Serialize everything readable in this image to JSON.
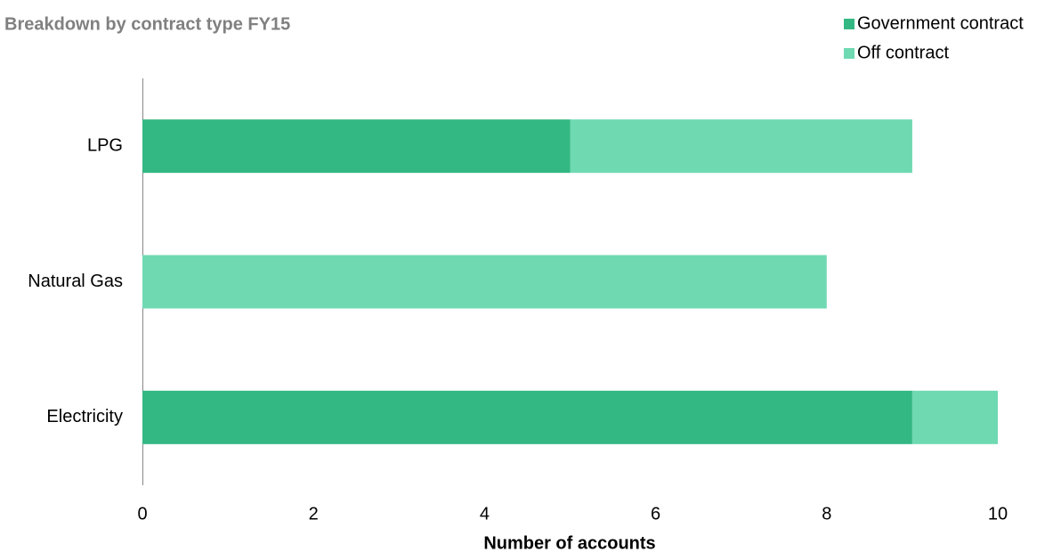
{
  "chart_data": {
    "type": "bar",
    "orientation": "horizontal",
    "stacked": true,
    "title": "Breakdown by contract type FY15",
    "x_label": "Number of accounts",
    "categories": [
      "LPG",
      "Natural Gas",
      "Electricity"
    ],
    "series": [
      {
        "name": "Government contract",
        "color": "#34b883",
        "values": [
          5,
          0,
          9
        ]
      },
      {
        "name": "Off contract",
        "color": "#6fd9b2",
        "values": [
          4,
          8,
          1
        ]
      }
    ],
    "xlim": [
      0,
      10
    ],
    "xticks": [
      0,
      2,
      4,
      6,
      8,
      10
    ],
    "legend": "top-right",
    "grid": false
  }
}
